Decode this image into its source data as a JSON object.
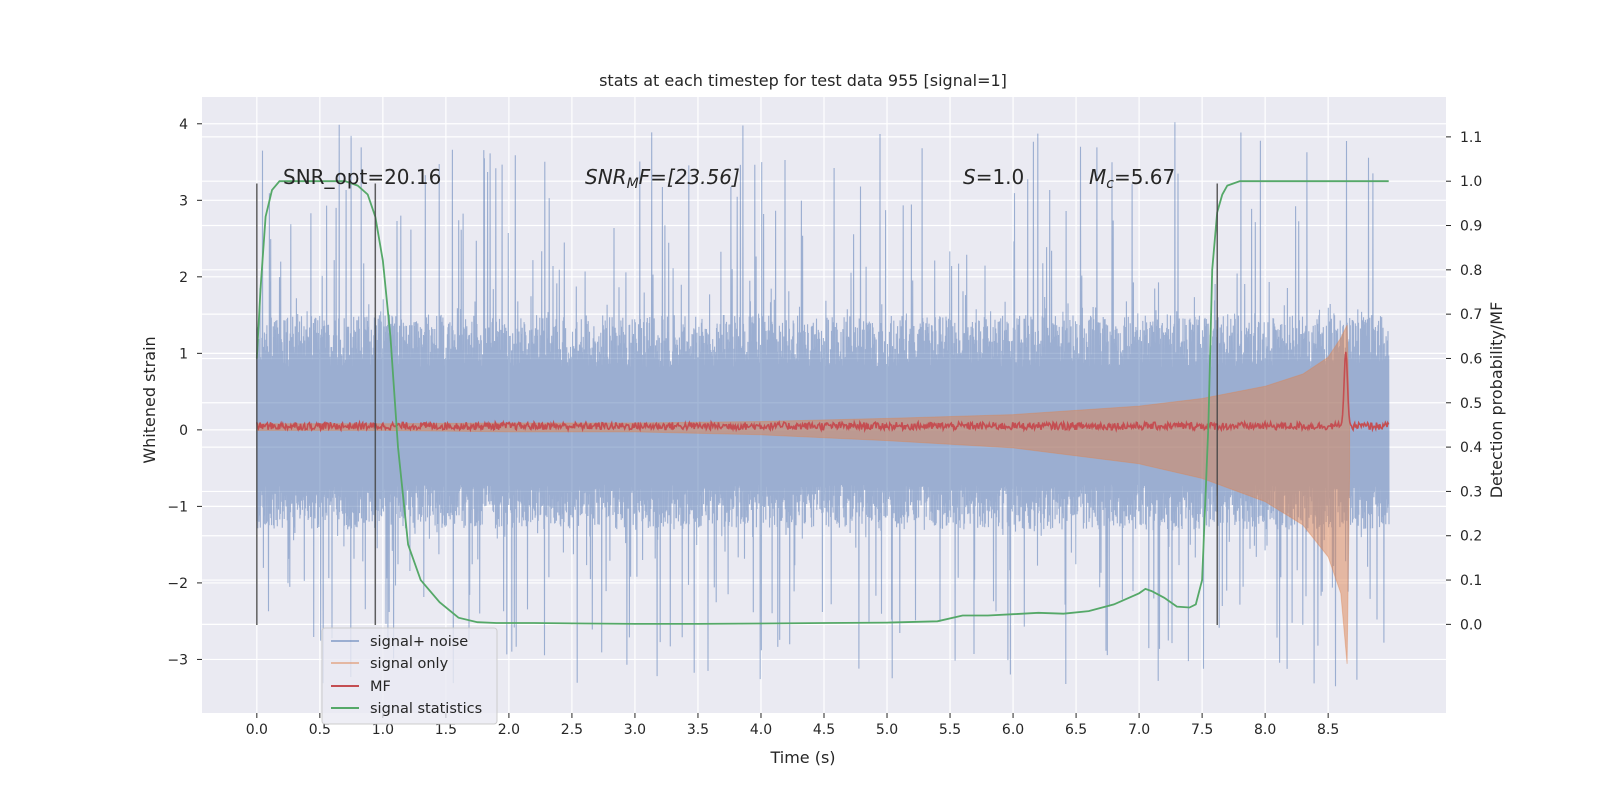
{
  "chart_data": {
    "type": "line",
    "title": "stats at each timestep for test data 955 [signal=1]",
    "xlabel": "Time (s)",
    "ylabel": "Whitened strain",
    "ylabel_right": "Detection probability/MF",
    "xlim": [
      -0.435,
      9.435
    ],
    "ylim": [
      -3.7,
      4.35
    ],
    "ylim_right": [
      -0.2,
      1.19
    ],
    "x_ticks": [
      "0.0",
      "0.5",
      "1.0",
      "1.5",
      "2.0",
      "2.5",
      "3.0",
      "3.5",
      "4.0",
      "4.5",
      "5.0",
      "5.5",
      "6.0",
      "6.5",
      "7.0",
      "7.5",
      "8.0",
      "8.5"
    ],
    "x_tick_values": [
      0,
      0.5,
      1,
      1.5,
      2,
      2.5,
      3,
      3.5,
      4,
      4.5,
      5,
      5.5,
      6,
      6.5,
      7,
      7.5,
      8,
      8.5
    ],
    "y_ticks": [
      "4",
      "3",
      "2",
      "1",
      "0",
      "−1",
      "−2",
      "−3"
    ],
    "y_tick_values": [
      4,
      3,
      2,
      1,
      0,
      -1,
      -2,
      -3
    ],
    "y_right_ticks": [
      "1.1",
      "1.0",
      "0.9",
      "0.8",
      "0.7",
      "0.6",
      "0.5",
      "0.4",
      "0.3",
      "0.2",
      "0.1",
      "0.0"
    ],
    "y_right_tick_values": [
      1.1,
      1.0,
      0.9,
      0.8,
      0.7,
      0.6,
      0.5,
      0.4,
      0.3,
      0.2,
      0.1,
      0.0
    ],
    "grid": true,
    "legend_position": "lower-left",
    "annotations": {
      "snr_opt": "SNR_opt=20.16",
      "snr_mf_label": "SNR",
      "snr_mf_sub": "M",
      "snr_mf_value": "F=[23.56]",
      "s_label": "S",
      "s_value": "=1.0",
      "mc_label": "M",
      "mc_sub": "c",
      "mc_value": "=5.67"
    },
    "vertical_markers": [
      {
        "x": 0.0,
        "y_range": [
          -2.55,
          3.22
        ]
      },
      {
        "x": 0.94,
        "y_range": [
          -2.55,
          3.22
        ]
      },
      {
        "x": 7.62,
        "y_range": [
          -2.55,
          3.22
        ]
      }
    ],
    "series": [
      {
        "name": "signal+ noise",
        "color": "#4c72b0",
        "opacity": 0.5,
        "x_range": [
          0,
          8.98
        ],
        "envelope": {
          "typical_low": -1.3,
          "typical_high": 1.5,
          "spike_max": 4.02,
          "spike_min": -3.35
        }
      },
      {
        "name": "signal only",
        "color": "#dd8452",
        "opacity": 0.5,
        "x": [
          0.0,
          1.0,
          2.0,
          3.0,
          4.0,
          5.0,
          6.0,
          7.0,
          7.5,
          8.0,
          8.3,
          8.5,
          8.6,
          8.65,
          8.67
        ],
        "amplitude": [
          0.03,
          0.03,
          0.04,
          0.04,
          0.06,
          0.1,
          0.15,
          0.26,
          0.36,
          0.52,
          0.68,
          0.9,
          1.15,
          1.32,
          0.0
        ],
        "y_center": 0.05
      },
      {
        "name": "MF",
        "color": "#c44e52",
        "baseline": 0.05,
        "noise_amplitude": 0.05,
        "peak": {
          "x": 8.64,
          "y": 1.02
        }
      },
      {
        "name": "signal statistics",
        "color": "#55a868",
        "axis": "right",
        "x": [
          0.0,
          0.03,
          0.07,
          0.12,
          0.18,
          0.3,
          0.5,
          0.7,
          0.8,
          0.88,
          0.94,
          1.0,
          1.06,
          1.12,
          1.2,
          1.3,
          1.45,
          1.6,
          1.75,
          1.9,
          2.2,
          2.6,
          3.0,
          3.5,
          4.0,
          4.5,
          5.0,
          5.4,
          5.6,
          5.8,
          6.0,
          6.2,
          6.4,
          6.6,
          6.8,
          7.0,
          7.05,
          7.1,
          7.2,
          7.3,
          7.4,
          7.45,
          7.5,
          7.55,
          7.58,
          7.62,
          7.66,
          7.7,
          7.75,
          7.8,
          7.9,
          8.1,
          8.5,
          8.98
        ],
        "y": [
          0.6,
          0.76,
          0.92,
          0.98,
          1.0,
          1.0,
          1.0,
          1.0,
          0.99,
          0.97,
          0.92,
          0.82,
          0.65,
          0.4,
          0.18,
          0.1,
          0.05,
          0.015,
          0.005,
          0.003,
          0.003,
          0.002,
          0.001,
          0.001,
          0.002,
          0.003,
          0.004,
          0.007,
          0.02,
          0.02,
          0.023,
          0.026,
          0.024,
          0.03,
          0.045,
          0.07,
          0.08,
          0.075,
          0.06,
          0.04,
          0.038,
          0.045,
          0.1,
          0.45,
          0.8,
          0.93,
          0.97,
          0.99,
          0.995,
          1.0,
          1.0,
          1.0,
          1.0,
          1.0
        ]
      }
    ]
  }
}
